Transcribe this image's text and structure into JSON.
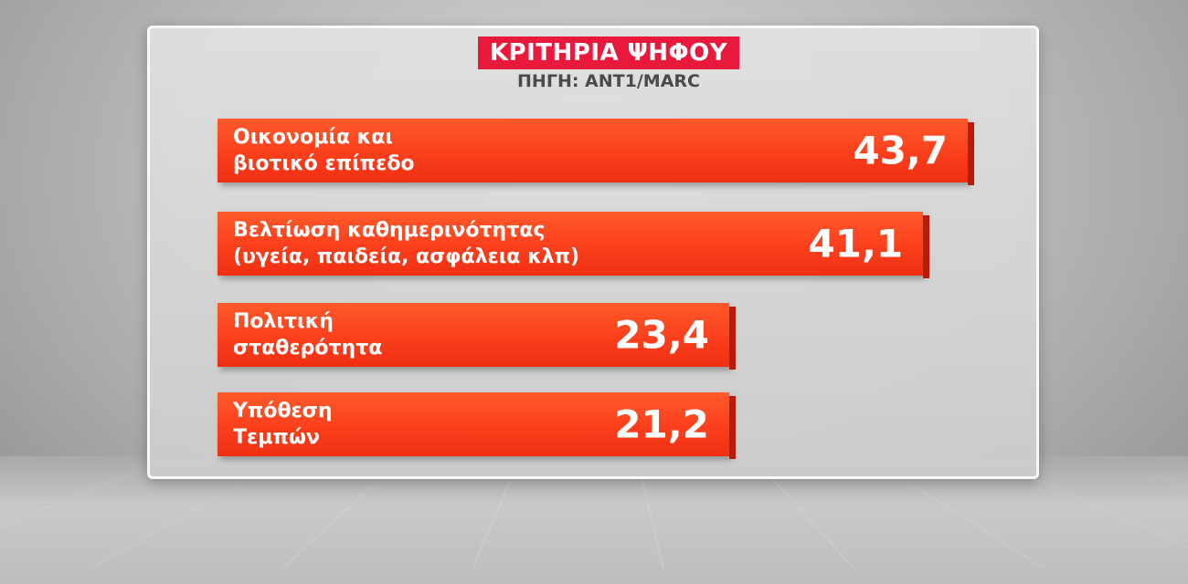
{
  "chart_data": {
    "type": "bar",
    "orientation": "horizontal",
    "title": "ΚΡΙΤΗΡΙΑ ΨΗΦΟΥ",
    "subtitle": "ΠΗΓΗ: ANT1/MARC",
    "categories": [
      "Οικονομία και\nβιοτικό επίπεδο",
      "Βελτίωση καθημερινότητας\n(υγεία, παιδεία, ασφάλεια κλπ)",
      "Πολιτική\nσταθερότητα",
      "Υπόθεση\nΤεμπών"
    ],
    "values": [
      43.7,
      41.1,
      23.4,
      21.2
    ],
    "value_labels": [
      "43,7",
      "41,1",
      "23,4",
      "21,2"
    ],
    "grid": false,
    "legend": "none",
    "colors": {
      "bar": "#fb3f1c",
      "title_bg": "#e8193c"
    }
  }
}
